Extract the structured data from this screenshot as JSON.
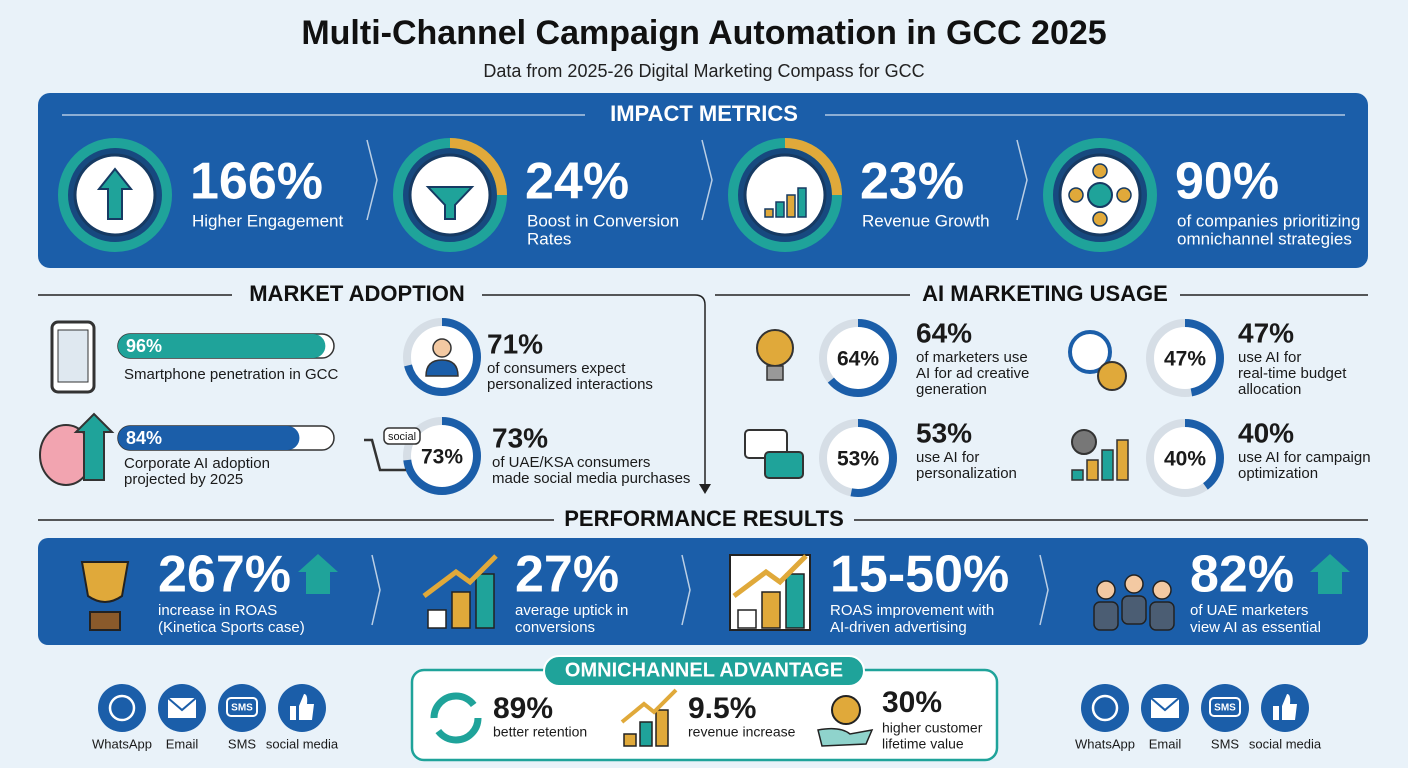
{
  "header": {
    "title": "Multi-Channel Campaign Automation in GCC 2025",
    "subtitle": "Data from 2025-26 Digital Marketing Compass for GCC"
  },
  "impact_metrics": {
    "title": "IMPACT METRICS",
    "items": [
      {
        "value": "166%",
        "lines": [
          "Higher Engagement"
        ]
      },
      {
        "value": "24%",
        "lines": [
          "Boost in Conversion",
          "Rates"
        ]
      },
      {
        "value": "23%",
        "lines": [
          "Revenue Growth"
        ]
      },
      {
        "value": "90%",
        "lines": [
          "of companies prioritizing",
          "omnichannel strategies"
        ]
      }
    ]
  },
  "market_adoption": {
    "title": "MARKET ADOPTION",
    "bars": [
      {
        "percent": {
          "value": 96,
          "label": "96%"
        },
        "lines": [
          "Smartphone penetration in GCC"
        ]
      },
      {
        "percent": {
          "value": 84,
          "label": "84%"
        },
        "lines": [
          "Corporate AI adoption",
          "projected by 2025"
        ]
      }
    ],
    "donuts": [
      {
        "percent": {
          "value": 71,
          "label": "71%"
        },
        "lines": [
          "of consumers expect",
          "personalized interactions"
        ]
      },
      {
        "percent": {
          "value": 73,
          "label": "73%"
        },
        "tag": "social",
        "lines": [
          "of UAE/KSA consumers",
          "made social media purchases"
        ]
      }
    ]
  },
  "ai_marketing_usage": {
    "title": "AI MARKETING USAGE",
    "items": [
      {
        "percent": {
          "value": 64,
          "label": "64%"
        },
        "lines": [
          "of marketers use",
          "AI for ad creative",
          "generation"
        ]
      },
      {
        "percent": {
          "value": 47,
          "label": "47%"
        },
        "lines": [
          "use AI for",
          "real-time budget",
          "allocation"
        ]
      },
      {
        "percent": {
          "value": 53,
          "label": "53%"
        },
        "lines": [
          "use AI for",
          "personalization"
        ]
      },
      {
        "percent": {
          "value": 40,
          "label": "40%"
        },
        "lines": [
          "use AI for campaign",
          "optimization"
        ]
      }
    ]
  },
  "performance_results": {
    "title": "PERFORMANCE RESULTS",
    "items": [
      {
        "value": "267%",
        "lines": [
          "increase in ROAS",
          "(Kinetica Sports case)"
        ]
      },
      {
        "value": "27%",
        "lines": [
          "average uptick in",
          "conversions"
        ]
      },
      {
        "value": "15-50%",
        "lines": [
          "ROAS improvement with",
          "AI-driven advertising"
        ]
      },
      {
        "value": "82%",
        "lines": [
          "of UAE marketers",
          "view AI as essential"
        ]
      }
    ]
  },
  "omnichannel_advantage": {
    "title": "OMNICHANNEL ADVANTAGE",
    "items": [
      {
        "value": "89%",
        "lines": [
          "better retention"
        ]
      },
      {
        "value": "9.5%",
        "lines": [
          "revenue increase"
        ]
      },
      {
        "value": "30%",
        "lines": [
          "higher customer",
          "lifetime value"
        ]
      }
    ]
  },
  "channels": [
    "WhatsApp",
    "Email",
    "SMS",
    "social media"
  ]
}
